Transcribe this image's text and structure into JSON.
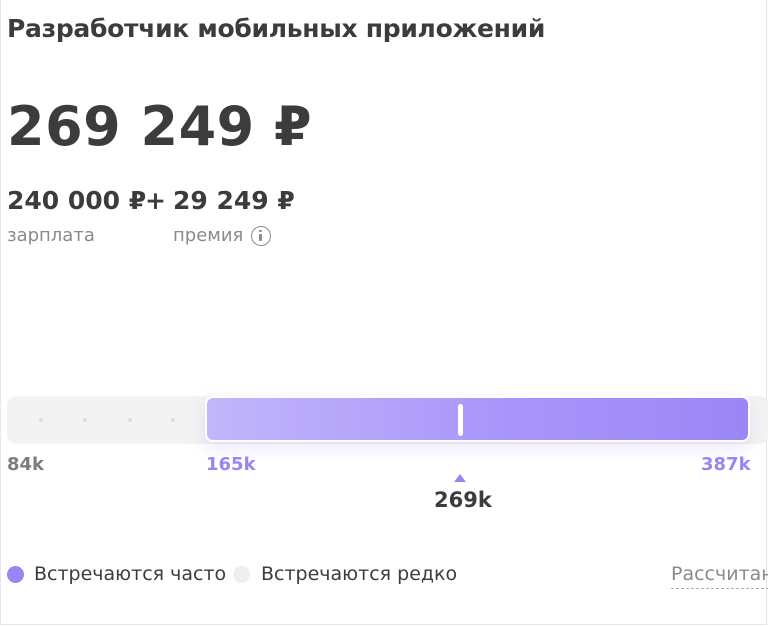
{
  "header": {
    "title": "Разработчик мобильных приложений"
  },
  "salary": {
    "total": "269 249 ₽",
    "base_value": "240 000 ₽",
    "base_label": "зарплата",
    "plus": "+",
    "bonus_value": "29 249 ₽",
    "bonus_label": "премия"
  },
  "range": {
    "min_label": "84k",
    "low_label": "165k",
    "high_label": "387k",
    "current_label": "269k",
    "scale_min_k": 84,
    "range_low_k": 165,
    "range_high_k": 387,
    "current_k": 269
  },
  "legend": {
    "frequent_label": "Встречаются часто",
    "rare_label": "Встречаются редко",
    "frequent_color": "#9b85f4",
    "rare_color": "#eeeeee"
  },
  "footer": {
    "calc_link": "Рассчитан"
  }
}
